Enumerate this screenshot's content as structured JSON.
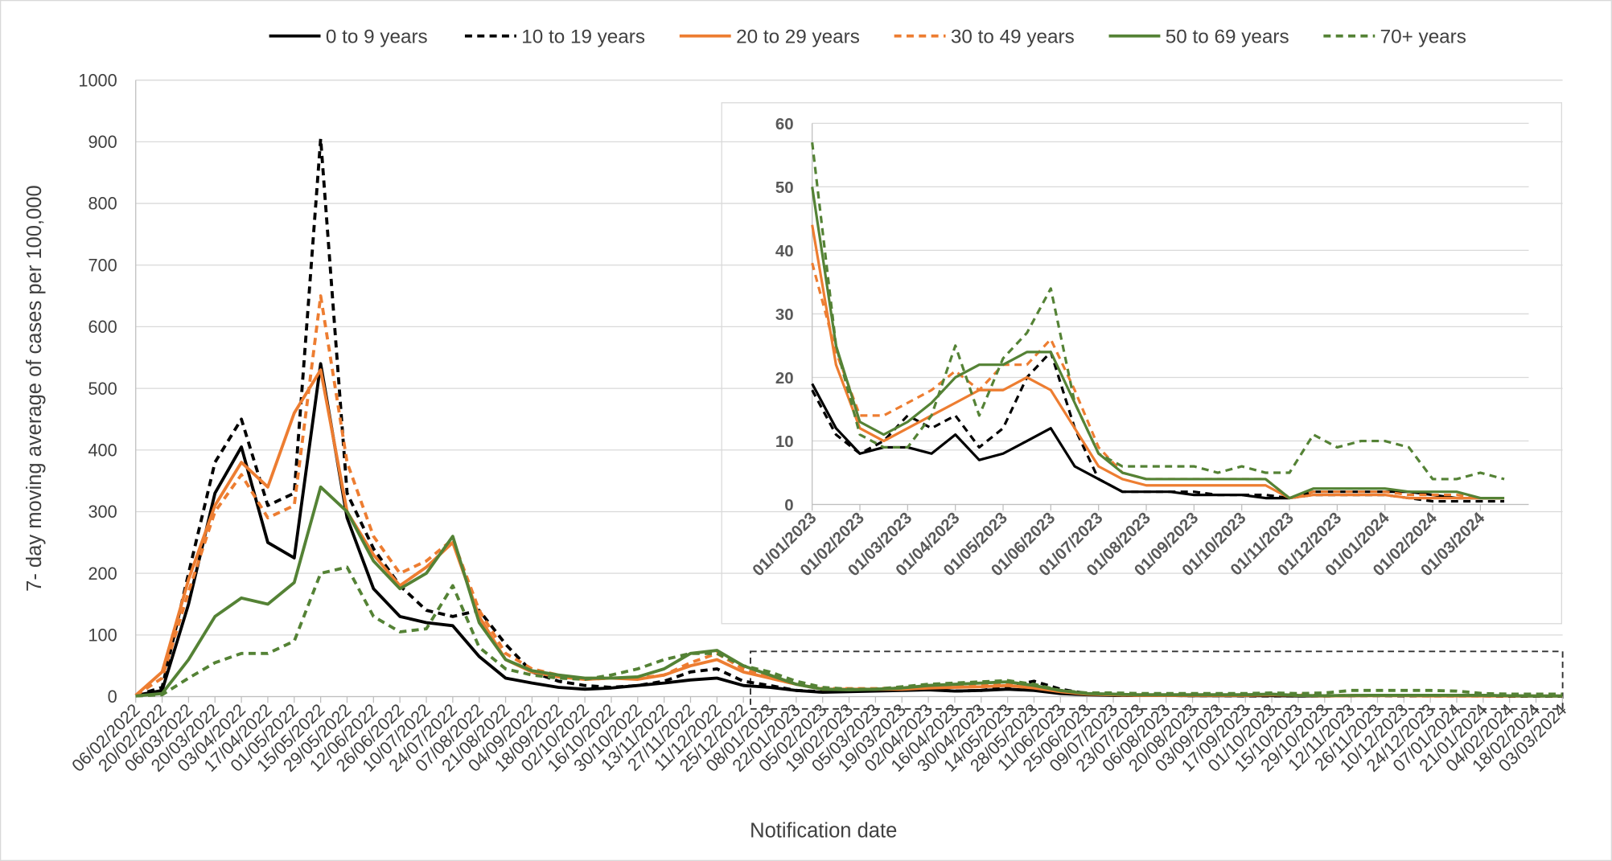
{
  "chart_data": [
    {
      "type": "line",
      "y_label": "7- day moving average of cases per 100,000",
      "x_label": "Notification date",
      "categories": [
        "06/02/2022",
        "20/02/2022",
        "06/03/2022",
        "20/03/2022",
        "03/04/2022",
        "17/04/2022",
        "01/05/2022",
        "15/05/2022",
        "29/05/2022",
        "12/06/2022",
        "26/06/2022",
        "10/07/2022",
        "24/07/2022",
        "07/08/2022",
        "21/08/2022",
        "04/09/2022",
        "18/09/2022",
        "02/10/2022",
        "16/10/2022",
        "30/10/2022",
        "13/11/2022",
        "27/11/2022",
        "11/12/2022",
        "25/12/2022",
        "08/01/2023",
        "22/01/2023",
        "05/02/2023",
        "19/02/2023",
        "05/03/2023",
        "19/03/2023",
        "02/04/2023",
        "16/04/2023",
        "30/04/2023",
        "14/05/2023",
        "28/05/2023",
        "11/06/2023",
        "25/06/2023",
        "09/07/2023",
        "23/07/2023",
        "06/08/2023",
        "20/08/2023",
        "03/09/2023",
        "17/09/2023",
        "01/10/2023",
        "15/10/2023",
        "29/10/2023",
        "12/11/2023",
        "26/11/2023",
        "10/12/2023",
        "24/12/2023",
        "07/01/2024",
        "21/01/2024",
        "04/02/2024",
        "18/02/2024",
        "03/03/2024"
      ],
      "ylim": [
        0,
        1000
      ],
      "yticks": [
        0,
        100,
        200,
        300,
        400,
        500,
        600,
        700,
        800,
        900,
        1000
      ],
      "grid": true,
      "legend": "top",
      "series": [
        {
          "name": "0 to 9 years",
          "color": "#000000",
          "dashed": false,
          "values": [
            2,
            10,
            150,
            330,
            405,
            250,
            225,
            540,
            290,
            175,
            130,
            120,
            115,
            65,
            30,
            22,
            15,
            12,
            14,
            18,
            22,
            27,
            30,
            18,
            15,
            10,
            7,
            8,
            9,
            10,
            11,
            9,
            10,
            12,
            10,
            5,
            3,
            2,
            2,
            2,
            1.5,
            1.5,
            1.5,
            1.5,
            1,
            1,
            1.5,
            2,
            2,
            1.5,
            2,
            2,
            1,
            1,
            1
          ]
        },
        {
          "name": "10 to 19 years",
          "color": "#000000",
          "dashed": true,
          "values": [
            2,
            15,
            200,
            380,
            450,
            310,
            330,
            905,
            330,
            240,
            180,
            140,
            130,
            140,
            85,
            40,
            25,
            18,
            15,
            18,
            25,
            40,
            45,
            25,
            18,
            10,
            8,
            9,
            12,
            14,
            12,
            9,
            10,
            16,
            25,
            12,
            5,
            2,
            2,
            2,
            1.5,
            1.5,
            1,
            1,
            1,
            1,
            1.5,
            1.5,
            1,
            1,
            1,
            1,
            0.5,
            0.5,
            0.5
          ]
        },
        {
          "name": "20 to 29 years",
          "color": "#ed7d31",
          "dashed": false,
          "values": [
            2,
            40,
            190,
            310,
            380,
            340,
            460,
            530,
            300,
            230,
            180,
            210,
            250,
            130,
            60,
            40,
            32,
            28,
            30,
            28,
            35,
            50,
            60,
            40,
            30,
            20,
            12,
            12,
            12,
            12,
            14,
            15,
            16,
            18,
            14,
            8,
            4,
            3,
            2,
            2,
            2,
            2,
            2,
            3,
            2,
            1,
            1.5,
            1.5,
            1.5,
            1,
            1,
            1,
            1,
            1,
            1
          ]
        },
        {
          "name": "30 to 49 years",
          "color": "#ed7d31",
          "dashed": true,
          "values": [
            2,
            30,
            170,
            300,
            360,
            290,
            310,
            650,
            380,
            260,
            200,
            220,
            255,
            140,
            70,
            45,
            35,
            28,
            30,
            30,
            35,
            55,
            70,
            45,
            30,
            20,
            13,
            13,
            13,
            14,
            16,
            18,
            20,
            22,
            16,
            9,
            5,
            3,
            3,
            3,
            3,
            3,
            3,
            3,
            3,
            1.5,
            2,
            2,
            2,
            1.5,
            1.5,
            1,
            1,
            1,
            1
          ]
        },
        {
          "name": "50 to 69 years",
          "color": "#548235",
          "dashed": false,
          "values": [
            1,
            5,
            60,
            130,
            160,
            150,
            185,
            340,
            300,
            220,
            175,
            200,
            260,
            120,
            60,
            42,
            35,
            30,
            30,
            32,
            45,
            70,
            75,
            50,
            35,
            20,
            12,
            11,
            12,
            14,
            18,
            20,
            22,
            24,
            18,
            10,
            5,
            4,
            3,
            3,
            3,
            3,
            3,
            4,
            2,
            1.5,
            2,
            2,
            2,
            2,
            2,
            2,
            1.5,
            1,
            1
          ]
        },
        {
          "name": "70+ years",
          "color": "#548235",
          "dashed": true,
          "values": [
            1,
            3,
            30,
            55,
            70,
            70,
            90,
            200,
            210,
            130,
            105,
            110,
            180,
            80,
            45,
            35,
            30,
            28,
            35,
            45,
            60,
            70,
            70,
            50,
            40,
            25,
            15,
            12,
            12,
            16,
            20,
            22,
            24,
            26,
            20,
            10,
            6,
            6,
            5,
            5,
            5,
            5,
            5,
            6,
            5,
            6,
            10,
            10,
            10,
            10,
            9,
            5,
            4,
            4,
            4
          ]
        }
      ]
    },
    {
      "type": "line",
      "categories": [
        "01/01/2023",
        null,
        "01/02/2023",
        null,
        "01/03/2023",
        null,
        "01/04/2023",
        null,
        "01/05/2023",
        null,
        "01/06/2023",
        null,
        "01/07/2023",
        null,
        "01/08/2023",
        null,
        "01/09/2023",
        null,
        "01/10/2023",
        null,
        "01/11/2023",
        null,
        "01/12/2023",
        null,
        "01/01/2024",
        null,
        "01/02/2024",
        null,
        "01/03/2024",
        null
      ],
      "ylim": [
        0,
        60
      ],
      "yticks": [
        0,
        10,
        20,
        30,
        40,
        50,
        60
      ],
      "grid": true,
      "series": [
        {
          "color": "#000000",
          "dashed": false,
          "values": [
            19,
            12,
            8,
            9,
            9,
            8,
            11,
            7,
            8,
            10,
            12,
            6,
            4,
            2,
            2,
            2,
            1.5,
            1.5,
            1.5,
            1,
            1,
            2,
            2,
            2,
            2,
            2,
            1.5,
            1,
            1,
            1
          ]
        },
        {
          "color": "#000000",
          "dashed": true,
          "values": [
            18,
            11,
            8,
            10,
            14,
            12,
            14,
            9,
            12,
            20,
            24,
            12,
            4,
            2,
            2,
            2,
            2,
            1.5,
            1.5,
            1.5,
            1,
            1.5,
            1.5,
            1.5,
            1.5,
            1,
            0.5,
            0.5,
            0.5,
            0.5
          ]
        },
        {
          "color": "#ed7d31",
          "dashed": false,
          "values": [
            44,
            22,
            12,
            10,
            12,
            14,
            16,
            18,
            18,
            20,
            18,
            12,
            6,
            4,
            3,
            3,
            3,
            3,
            3,
            3,
            1,
            1.5,
            1.5,
            1.5,
            1.5,
            1,
            1,
            1,
            1,
            1
          ]
        },
        {
          "color": "#ed7d31",
          "dashed": true,
          "values": [
            38,
            24,
            14,
            14,
            16,
            18,
            21,
            18,
            22,
            22,
            26,
            18,
            9,
            5,
            4,
            4,
            4,
            4,
            4,
            4,
            1,
            2,
            2,
            2,
            2,
            1.5,
            1.5,
            1.5,
            1,
            1
          ]
        },
        {
          "color": "#548235",
          "dashed": false,
          "values": [
            50,
            25,
            13,
            11,
            13,
            16,
            20,
            22,
            22,
            24,
            24,
            16,
            8,
            5,
            4,
            4,
            4,
            4,
            4,
            4,
            1,
            2.5,
            2.5,
            2.5,
            2.5,
            2,
            2,
            2,
            1,
            1
          ]
        },
        {
          "color": "#548235",
          "dashed": true,
          "values": [
            57,
            25,
            11,
            9,
            9,
            14,
            25,
            14,
            23,
            27,
            34,
            16,
            8,
            6,
            6,
            6,
            6,
            5,
            6,
            5,
            5,
            11,
            9,
            10,
            10,
            9,
            4,
            4,
            5,
            4
          ]
        }
      ]
    }
  ]
}
